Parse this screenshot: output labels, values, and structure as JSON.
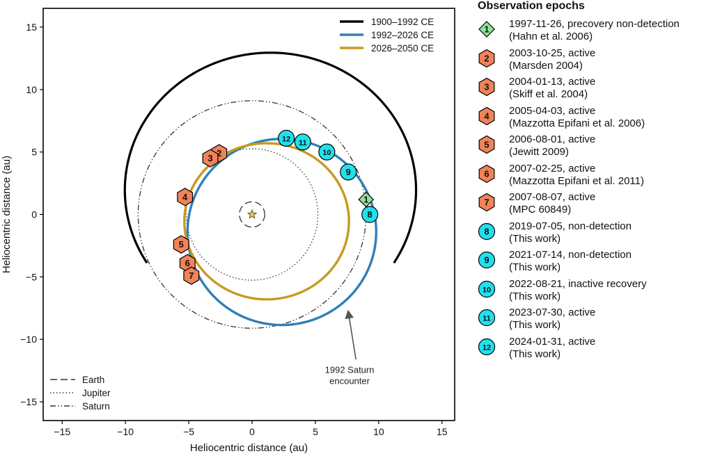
{
  "chart_data": {
    "type": "scatter",
    "xlabel": "Heliocentric distance (au)",
    "ylabel": "Heliocentric distance (au)",
    "xlim": [
      -16.5,
      16
    ],
    "ylim": [
      -16.5,
      16.5
    ],
    "xticks": [
      -15,
      -10,
      -5,
      0,
      5,
      10,
      15
    ],
    "yticks": [
      -15,
      -10,
      -5,
      0,
      5,
      10,
      15
    ],
    "grid": false,
    "center_marker": "star",
    "orbit_legend": {
      "placement": "top-right",
      "entries": [
        {
          "label": "1900–1992 CE",
          "color": "#000000"
        },
        {
          "label": "1992–2026 CE",
          "color": "#2f7fb8"
        },
        {
          "label": "2026–2050 CE",
          "color": "#c69a1e"
        }
      ]
    },
    "orbits": [
      {
        "name": "1900–1992 CE",
        "color": "#000000",
        "cx": 1.45,
        "cy": 1.95,
        "a": 11.5,
        "b": 11.0,
        "start_angle": -32,
        "end_angle": 212
      },
      {
        "name": "1992–2026 CE",
        "color": "#2f7fb8",
        "cx": 2.35,
        "cy": -1.4,
        "a": 7.45,
        "b": 7.45,
        "start_angle": 0,
        "end_angle": 360
      },
      {
        "name": "2026–2050 CE",
        "color": "#c69a1e",
        "cx": 1.15,
        "cy": -0.55,
        "a": 6.5,
        "b": 6.25,
        "start_angle": 0,
        "end_angle": 360
      }
    ],
    "planet_orbits": [
      {
        "name": "Earth",
        "radius": 1.0,
        "dash": "long"
      },
      {
        "name": "Jupiter",
        "radius": 5.2,
        "dash": "dotted"
      },
      {
        "name": "Saturn",
        "radius": 9.0,
        "dash": "dashdot"
      }
    ],
    "planet_legend": {
      "placement": "bottom-left",
      "entries": [
        "Earth",
        "Jupiter",
        "Saturn"
      ]
    },
    "annotation": {
      "text_lines": [
        "1992 Saturn",
        "encounter"
      ],
      "text_x": 7.7,
      "text_y": -12.7,
      "arrow_from": [
        8.2,
        -11.6
      ],
      "arrow_to": [
        7.6,
        -7.8
      ]
    },
    "epochs_title": "Observation epochs",
    "epochs": [
      {
        "n": "1",
        "shape": "diamond",
        "color": "#90e39a",
        "x": 9.0,
        "y": 1.2,
        "line1": "1997-11-26, precovery non-detection",
        "line2": "(Hahn et al. 2006)"
      },
      {
        "n": "2",
        "shape": "hexagon",
        "color": "#f08357",
        "x": -2.6,
        "y": 4.9,
        "line1": "2003-10-25, active",
        "line2": "(Marsden 2004)"
      },
      {
        "n": "3",
        "shape": "hexagon",
        "color": "#f08357",
        "x": -3.3,
        "y": 4.5,
        "line1": "2004-01-13, active",
        "line2": "(Skiff et al. 2004)"
      },
      {
        "n": "4",
        "shape": "hexagon",
        "color": "#f08357",
        "x": -5.3,
        "y": 1.4,
        "line1": "2005-04-03, active",
        "line2": "(Mazzotta Epifani et al. 2006)"
      },
      {
        "n": "5",
        "shape": "hexagon",
        "color": "#f08357",
        "x": -5.6,
        "y": -2.4,
        "line1": "2006-08-01, active",
        "line2": "(Jewitt 2009)"
      },
      {
        "n": "6",
        "shape": "hexagon",
        "color": "#f08357",
        "x": -5.1,
        "y": -3.9,
        "line1": "2007-02-25, active",
        "line2": "(Mazzotta Epifani et al. 2011)"
      },
      {
        "n": "7",
        "shape": "hexagon",
        "color": "#f08357",
        "x": -4.8,
        "y": -4.9,
        "line1": "2007-08-07, active",
        "line2": "(MPC 60849)"
      },
      {
        "n": "8",
        "shape": "circle",
        "color": "#20e0ee",
        "x": 9.3,
        "y": 0.0,
        "line1": "2019-07-05, non-detection",
        "line2": "(This work)"
      },
      {
        "n": "9",
        "shape": "circle",
        "color": "#20e0ee",
        "x": 7.6,
        "y": 3.4,
        "line1": "2021-07-14, non-detection",
        "line2": "(This work)"
      },
      {
        "n": "10",
        "shape": "circle",
        "color": "#20e0ee",
        "x": 5.9,
        "y": 5.0,
        "line1": "2022-08-21, inactive recovery",
        "line2": "(This work)"
      },
      {
        "n": "11",
        "shape": "circle",
        "color": "#20e0ee",
        "x": 4.0,
        "y": 5.8,
        "line1": "2023-07-30, active",
        "line2": "(This work)"
      },
      {
        "n": "12",
        "shape": "circle",
        "color": "#20e0ee",
        "x": 2.7,
        "y": 6.1,
        "line1": "2024-01-31, active",
        "line2": "(This work)"
      }
    ]
  }
}
